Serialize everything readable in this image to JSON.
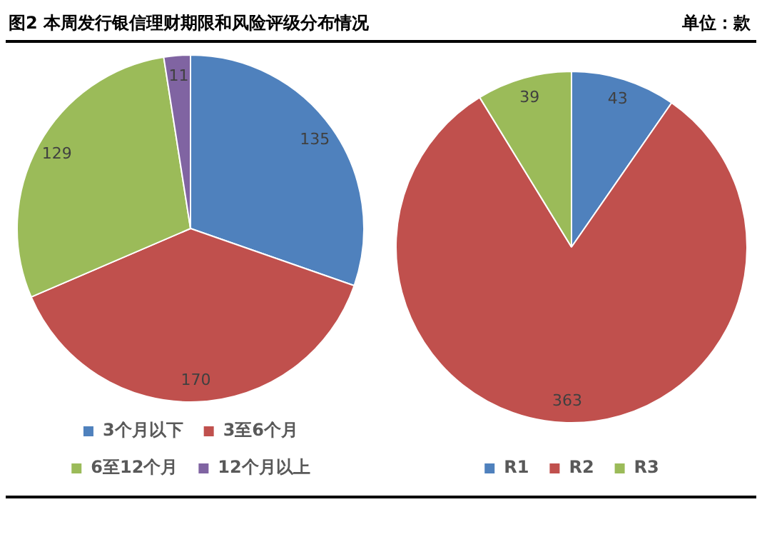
{
  "chart_data": [
    {
      "type": "pie",
      "title": "图2 本周发行银信理财期限和风险评级分布情况",
      "categories": [
        "3个月以下",
        "3至6个月",
        "6至12个月",
        "12个月以上"
      ],
      "values": [
        135,
        170,
        129,
        11
      ],
      "colors": [
        "#4f81bd",
        "#c0504d",
        "#9bbb59",
        "#8064a2"
      ],
      "data_labels": true,
      "legend": "bottom"
    },
    {
      "type": "pie",
      "annotations": [
        "单位：款"
      ],
      "categories": [
        "R1",
        "R2",
        "R3"
      ],
      "values": [
        43,
        363,
        39
      ],
      "colors": [
        "#4f81bd",
        "#c0504d",
        "#9bbb59"
      ],
      "data_labels": true,
      "legend": "bottom"
    }
  ]
}
